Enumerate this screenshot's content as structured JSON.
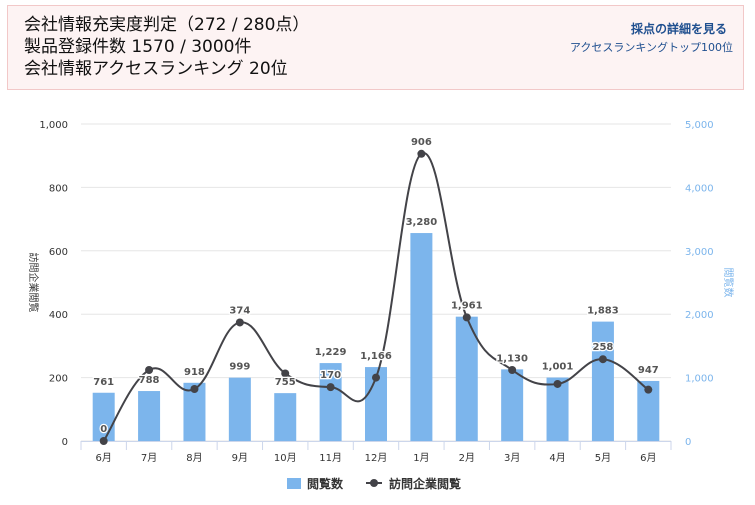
{
  "header": {
    "line1": "会社情報充実度判定（272 / 280点）",
    "line2": "製品登録件数 1570 / 3000件",
    "line3": "会社情報アクセスランキング 20位",
    "score_link": "採点の詳細を見る",
    "ranking_link": "アクセスランキングトップ100位"
  },
  "colors": {
    "bar": "#7cb5ec",
    "line": "#434348",
    "right_axis": "#7cb5ec"
  },
  "chart_data": {
    "type": "bar+line",
    "categories": [
      "6月",
      "7月",
      "8月",
      "9月",
      "10月",
      "11月",
      "12月",
      "1月",
      "2月",
      "3月",
      "4月",
      "5月",
      "6月"
    ],
    "series": [
      {
        "name": "閲覧数",
        "type": "bar",
        "axis": "right",
        "values": [
          761,
          788,
          918,
          999,
          755,
          1229,
          1166,
          3280,
          1961,
          1130,
          1001,
          1883,
          947
        ],
        "labels": [
          "761",
          "788",
          "918",
          "999",
          "755",
          "1,229",
          "1,166",
          "3,280",
          "1,961",
          "1,130",
          "1,001",
          "1,883",
          "947"
        ]
      },
      {
        "name": "訪問企業閲覧",
        "type": "line",
        "axis": "left",
        "values": [
          0,
          224,
          164,
          374,
          213,
          170,
          200,
          906,
          390,
          224,
          180,
          258,
          162
        ],
        "labels": [
          "0",
          "",
          "",
          "374",
          "",
          "170",
          "",
          "906",
          "",
          "",
          "",
          "258",
          ""
        ]
      }
    ],
    "y_left": {
      "label": "訪問企業閲覧",
      "min": 0,
      "max": 1000,
      "ticks": [
        0,
        200,
        400,
        600,
        800,
        1000
      ],
      "tick_labels": [
        "0",
        "200",
        "400",
        "600",
        "800",
        "1,000"
      ]
    },
    "y_right": {
      "label": "閲覧数",
      "min": 0,
      "max": 5000,
      "ticks": [
        0,
        1000,
        2000,
        3000,
        4000,
        5000
      ],
      "tick_labels": [
        "0",
        "1,000",
        "2,000",
        "3,000",
        "4,000",
        "5,000"
      ]
    },
    "grid": true,
    "legend": "bottom-center"
  }
}
